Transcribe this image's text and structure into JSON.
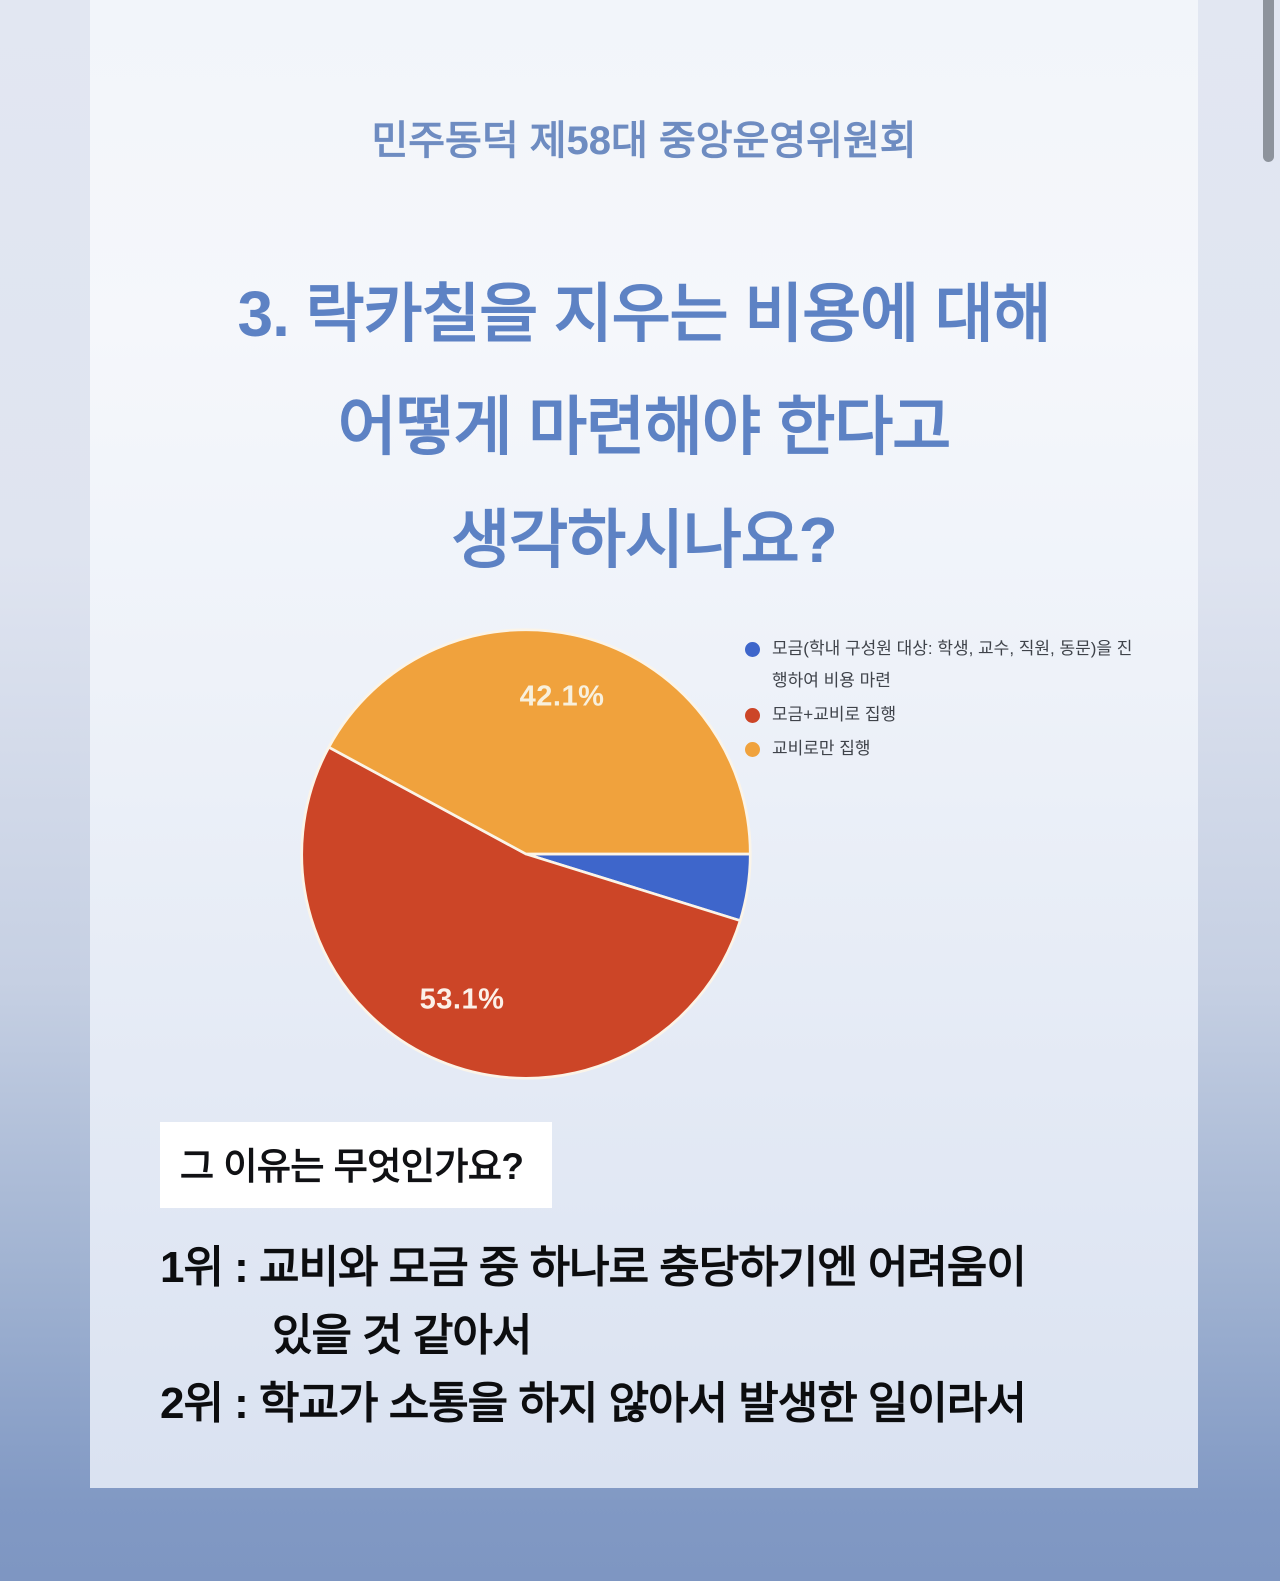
{
  "header": {
    "org_title": "민주동덕 제58대 중앙운영위원회"
  },
  "title": {
    "lines": [
      "3. 락카칠을 지우는 비용에 대해",
      "어떻게 마련해야 한다고",
      "생각하시나요?"
    ],
    "color": "#5d82c4"
  },
  "chart_data": {
    "type": "pie",
    "title": "",
    "start_angle_deg": 0,
    "direction": "clockwise",
    "legend_position": "right",
    "slice_border_color": "#fbf4e8",
    "slices": [
      {
        "label": "모금(학내 구성원 대상: 학생, 교수, 직원, 동문)을 진행하여 비용 마련",
        "value": 4.8,
        "percent_label": "",
        "color": "#3E66CB"
      },
      {
        "label": "모금+교비로 집행",
        "value": 53.1,
        "percent_label": "53.1%",
        "color": "#CC4527"
      },
      {
        "label": "교비로만 집행",
        "value": 42.1,
        "percent_label": "42.1%",
        "color": "#F0A23D"
      }
    ]
  },
  "reasons": {
    "question": "그 이유는 무엇인가요?",
    "lines": [
      {
        "text": "1위 : 교비와 모금 중 하나로 충당하기엔 어려움이",
        "indent": false
      },
      {
        "text": "있을 것 같아서",
        "indent": true
      },
      {
        "text": "2위 : 학교가 소통을 하지 않아서 발생한 일이라서",
        "indent": false
      }
    ]
  }
}
